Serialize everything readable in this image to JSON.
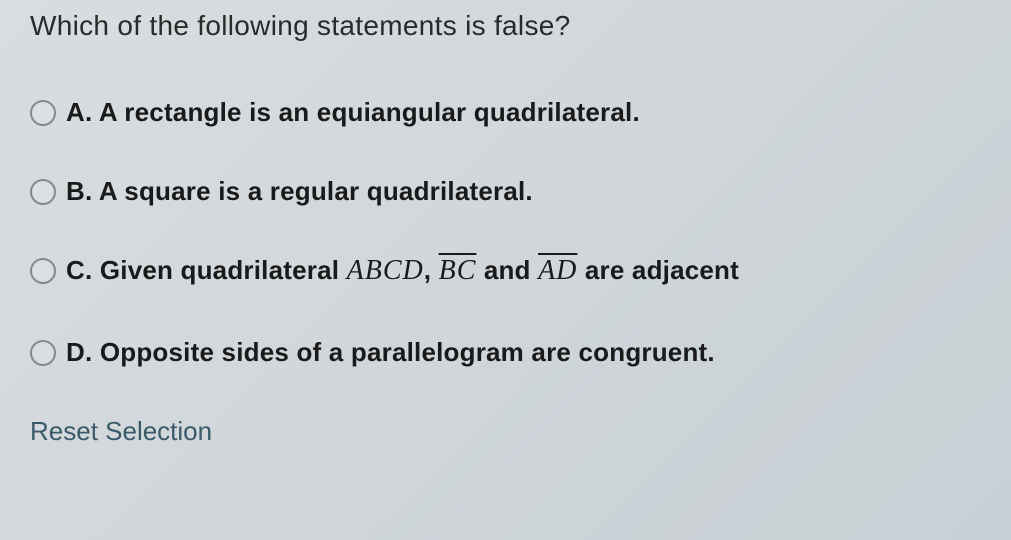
{
  "question": {
    "text": "Which of the following statements is false?"
  },
  "options": {
    "a": {
      "label": "A.",
      "text": "A rectangle is an equiangular quadrilateral."
    },
    "b": {
      "label": "B.",
      "text": "A square is a regular quadrilateral."
    },
    "c": {
      "label": "C.",
      "prefix": "Given quadrilateral",
      "quad": "ABCD",
      "comma": ",",
      "seg1": "BC",
      "conj": "and",
      "seg2": "AD",
      "suffix": "are adjacent"
    },
    "d": {
      "label": "D.",
      "text": "Opposite sides of a parallelogram are congruent."
    }
  },
  "controls": {
    "reset": "Reset Selection"
  }
}
